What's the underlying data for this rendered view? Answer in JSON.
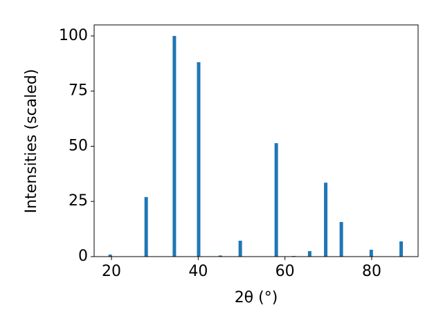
{
  "chart_data": {
    "type": "bar",
    "xlabel": "2θ (°)",
    "ylabel": "Intensities (scaled)",
    "x": [
      19.7,
      28.0,
      34.5,
      40.1,
      45.1,
      49.7,
      58.0,
      62.0,
      65.7,
      69.4,
      73.0,
      79.9,
      86.8
    ],
    "values": [
      0.9,
      27.0,
      100,
      88.1,
      0.5,
      7.2,
      51.4,
      0.3,
      2.5,
      33.5,
      15.7,
      3.1,
      6.9
    ],
    "color": "#1f77b4",
    "xlim": [
      16.0,
      90.7
    ],
    "ylim": [
      0,
      105
    ],
    "xticks": [
      20,
      40,
      60,
      80
    ],
    "yticks": [
      0,
      25,
      50,
      75,
      100
    ],
    "grid": false
  }
}
